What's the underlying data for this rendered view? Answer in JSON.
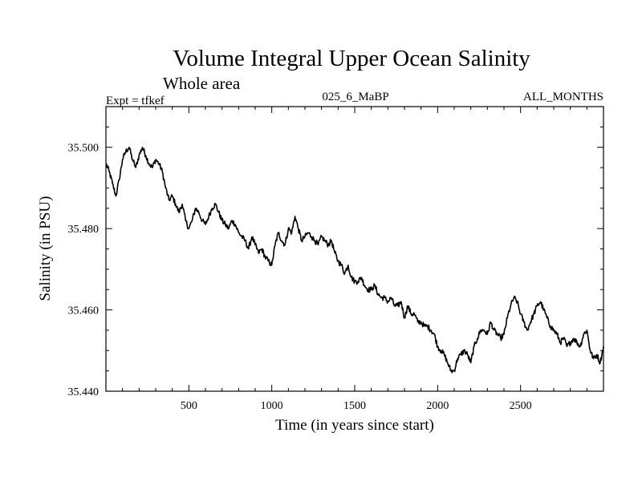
{
  "chart_data": {
    "type": "line",
    "title": "Volume Integral Upper Ocean Salinity",
    "subtitle": "Whole area",
    "experiment": "Expt = tfkef",
    "run_label": "025_6_MaBP",
    "months_label": "ALL_MONTHS",
    "xlabel": "Time (in years since start)",
    "ylabel": "Salinity (in PSU)",
    "xlim": [
      0,
      3000
    ],
    "ylim": [
      35.44,
      35.51
    ],
    "x_ticks": [
      500,
      1000,
      1500,
      2000,
      2500
    ],
    "y_ticks": [
      35.44,
      35.46,
      35.48,
      35.5
    ],
    "x_tick_labels": [
      "500",
      "1000",
      "1500",
      "2000",
      "2500"
    ],
    "y_tick_labels": [
      "35.440",
      "35.460",
      "35.480",
      "35.500"
    ],
    "grid": false,
    "series": [
      {
        "color": "#000000",
        "x": [
          0,
          20,
          40,
          60,
          80,
          100,
          120,
          140,
          160,
          180,
          200,
          220,
          240,
          260,
          280,
          300,
          320,
          340,
          360,
          380,
          400,
          420,
          440,
          460,
          480,
          500,
          520,
          540,
          560,
          580,
          600,
          620,
          640,
          660,
          680,
          700,
          720,
          740,
          760,
          780,
          800,
          820,
          840,
          860,
          880,
          900,
          920,
          940,
          960,
          980,
          1000,
          1020,
          1040,
          1060,
          1080,
          1100,
          1120,
          1140,
          1160,
          1180,
          1200,
          1220,
          1240,
          1260,
          1280,
          1300,
          1320,
          1340,
          1360,
          1380,
          1400,
          1420,
          1440,
          1460,
          1480,
          1500,
          1520,
          1540,
          1560,
          1580,
          1600,
          1620,
          1640,
          1660,
          1680,
          1700,
          1720,
          1740,
          1760,
          1780,
          1800,
          1820,
          1840,
          1860,
          1880,
          1900,
          1920,
          1940,
          1960,
          1980,
          2000,
          2020,
          2040,
          2060,
          2080,
          2100,
          2120,
          2140,
          2160,
          2180,
          2200,
          2220,
          2240,
          2260,
          2280,
          2300,
          2320,
          2340,
          2360,
          2380,
          2400,
          2420,
          2440,
          2460,
          2480,
          2500,
          2520,
          2540,
          2560,
          2580,
          2600,
          2620,
          2640,
          2660,
          2680,
          2700,
          2720,
          2740,
          2760,
          2780,
          2800,
          2820,
          2840,
          2860,
          2880,
          2900,
          2920,
          2940,
          2960,
          2980,
          3000
        ],
        "y": [
          35.496,
          35.494,
          35.491,
          35.488,
          35.492,
          35.497,
          35.499,
          35.5,
          35.497,
          35.495,
          35.498,
          35.5,
          35.498,
          35.496,
          35.495,
          35.497,
          35.496,
          35.494,
          35.49,
          35.487,
          35.488,
          35.486,
          35.484,
          35.486,
          35.482,
          35.48,
          35.482,
          35.485,
          35.484,
          35.482,
          35.481,
          35.483,
          35.485,
          35.486,
          35.484,
          35.482,
          35.481,
          35.48,
          35.482,
          35.481,
          35.479,
          35.478,
          35.477,
          35.475,
          35.478,
          35.476,
          35.474,
          35.475,
          35.473,
          35.472,
          35.471,
          35.476,
          35.479,
          35.477,
          35.476,
          35.48,
          35.479,
          35.483,
          35.48,
          35.477,
          35.478,
          35.479,
          35.478,
          35.477,
          35.476,
          35.478,
          35.477,
          35.476,
          35.477,
          35.474,
          35.472,
          35.471,
          35.469,
          35.471,
          35.468,
          35.467,
          35.467,
          35.468,
          35.466,
          35.465,
          35.465,
          35.466,
          35.464,
          35.463,
          35.463,
          35.462,
          35.463,
          35.461,
          35.461,
          35.462,
          35.458,
          35.461,
          35.459,
          35.459,
          35.457,
          35.457,
          35.456,
          35.456,
          35.455,
          35.454,
          35.451,
          35.45,
          35.449,
          35.447,
          35.445,
          35.445,
          35.448,
          35.449,
          35.45,
          35.449,
          35.447,
          35.451,
          35.453,
          35.455,
          35.455,
          35.454,
          35.457,
          35.455,
          35.454,
          35.453,
          35.454,
          35.458,
          35.461,
          35.463,
          35.462,
          35.459,
          35.457,
          35.455,
          35.457,
          35.459,
          35.461,
          35.462,
          35.46,
          35.458,
          35.456,
          35.455,
          35.454,
          35.452,
          35.453,
          35.451,
          35.452,
          35.453,
          35.452,
          35.451,
          35.454,
          35.455,
          35.45,
          35.448,
          35.449,
          35.447,
          35.451
        ]
      }
    ]
  }
}
